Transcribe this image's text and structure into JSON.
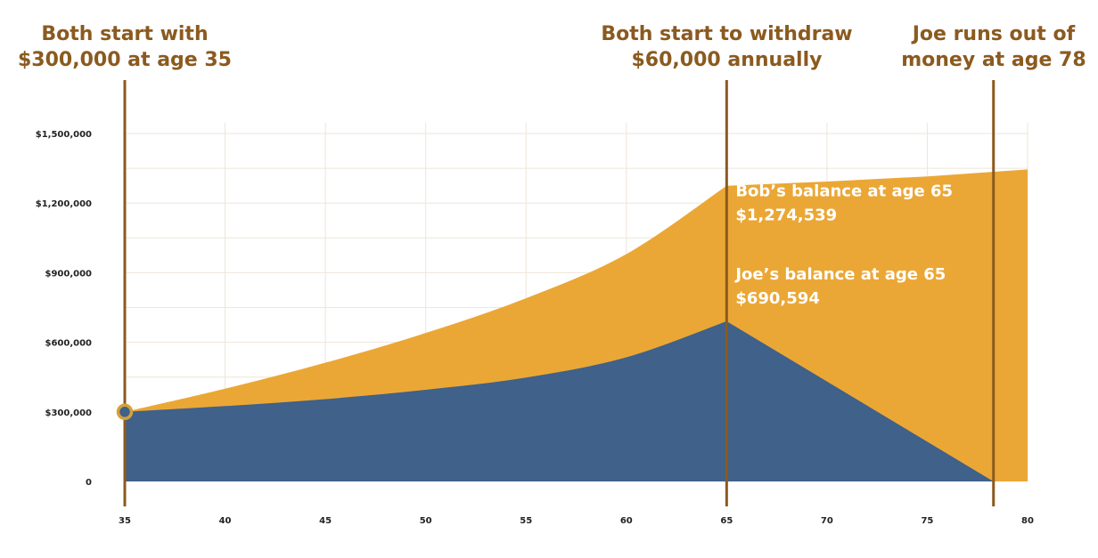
{
  "colors": {
    "bob_area": "#eba735",
    "joe_area": "#3f618a",
    "marker_line": "#8b5a1f",
    "annotation_text": "#8b5a1f",
    "grid": "#eee6da",
    "start_dot_fill": "#3f618a",
    "start_dot_ring": "#d6a03c"
  },
  "annotations": [
    {
      "age": 35,
      "lines": [
        "Both start with",
        "$300,000 at age 35"
      ]
    },
    {
      "age": 65,
      "lines": [
        "Both start to withdraw",
        "$60,000 annually"
      ]
    },
    {
      "age": 78.3,
      "lines": [
        "Joe runs out of",
        "money at age 78"
      ]
    }
  ],
  "chart_data": {
    "type": "area",
    "title": "",
    "xlabel": "",
    "ylabel": "",
    "xlim": [
      35,
      80
    ],
    "ylim": [
      0,
      1500000
    ],
    "x_ticks": [
      35,
      40,
      45,
      50,
      55,
      60,
      65,
      70,
      75,
      80
    ],
    "x_tick_labels": [
      "35",
      "40",
      "45",
      "50",
      "55",
      "60",
      "65",
      "70",
      "75",
      "80"
    ],
    "y_ticks": [
      0,
      300000,
      600000,
      900000,
      1200000,
      1500000
    ],
    "y_tick_labels": [
      "0",
      "$300,000",
      "$600,000",
      "$900,000",
      "$1,200,000",
      "$1,500,000"
    ],
    "grid": true,
    "legend": "none",
    "series": [
      {
        "x": [
          35,
          40,
          45,
          50,
          55,
          60,
          65,
          70,
          75,
          80
        ],
        "values": [
          300000,
          400000,
          512000,
          640000,
          790000,
          980000,
          1274539,
          1293000,
          1315000,
          1345000
        ]
      },
      {
        "x": [
          35,
          40,
          45,
          50,
          55,
          60,
          65,
          78.3
        ],
        "values": [
          300000,
          325000,
          355000,
          395000,
          448000,
          535000,
          690594,
          0
        ]
      }
    ],
    "value_labels": [
      {
        "age": 65,
        "lines": [
          "Bob’s balance at age 65",
          "$1,274,539"
        ],
        "anchor_value": 1230000
      },
      {
        "age": 65,
        "lines": [
          "Joe’s balance at age 65",
          "$690,594"
        ],
        "anchor_value": 870000
      }
    ],
    "start_point": {
      "age": 35,
      "value": 300000
    }
  }
}
